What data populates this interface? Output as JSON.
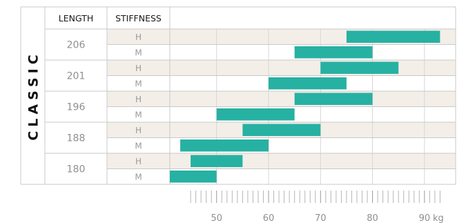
{
  "chart_data": {
    "type": "bar",
    "subtype": "floating-range",
    "series_label": "CLASSIC",
    "columns": [
      "LENGTH",
      "STIFFNESS"
    ],
    "x_unit": "kg",
    "xlim": [
      41,
      96
    ],
    "x_ticks": [
      50,
      60,
      70,
      80,
      90
    ],
    "x_tick_labels": [
      "50",
      "60",
      "70",
      "80",
      "90"
    ],
    "bar_color": "#27b1a3",
    "row_colors": {
      "H": "#f3efe8",
      "M": "#ffffff"
    },
    "grid": true,
    "rows": [
      {
        "length": "206",
        "stiffness": "H",
        "range": [
          75,
          93
        ]
      },
      {
        "length": "206",
        "stiffness": "M",
        "range": [
          65,
          80
        ]
      },
      {
        "length": "201",
        "stiffness": "H",
        "range": [
          70,
          85
        ]
      },
      {
        "length": "201",
        "stiffness": "M",
        "range": [
          60,
          75
        ]
      },
      {
        "length": "196",
        "stiffness": "H",
        "range": [
          65,
          80
        ]
      },
      {
        "length": "196",
        "stiffness": "M",
        "range": [
          50,
          65
        ]
      },
      {
        "length": "188",
        "stiffness": "H",
        "range": [
          55,
          70
        ]
      },
      {
        "length": "188",
        "stiffness": "M",
        "range": [
          43,
          60
        ]
      },
      {
        "length": "180",
        "stiffness": "H",
        "range": [
          45,
          55
        ]
      },
      {
        "length": "180",
        "stiffness": "M",
        "range": [
          41,
          50
        ]
      }
    ]
  }
}
